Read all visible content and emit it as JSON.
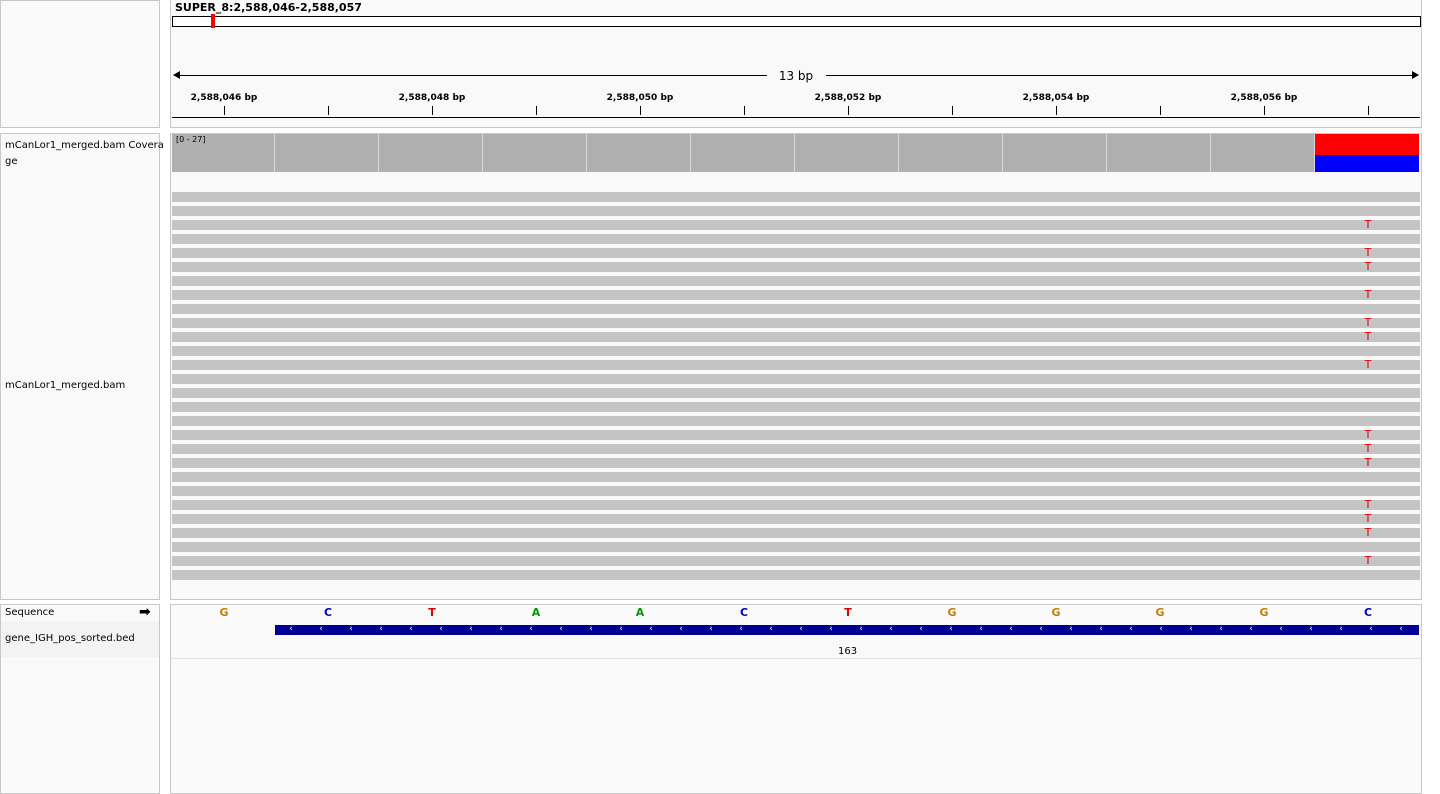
{
  "locus": "SUPER_8:2,588,046-2,588,057",
  "ruler": {
    "span_label": "13 bp",
    "ticks": [
      "2,588,046 bp",
      "2,588,048 bp",
      "2,588,050 bp",
      "2,588,052 bp",
      "2,588,054 bp",
      "2,588,056 bp"
    ]
  },
  "tracks": {
    "coverage_name_line1": "mCanLor1_merged.bam Covera",
    "coverage_name_line2": "ge",
    "coverage_range": "[0 - 27]",
    "alignment_name": "mCanLor1_merged.bam",
    "sequence_name": "Sequence",
    "bed_name": "gene_IGH_pos_sorted.bed",
    "bed_feature_label": "163"
  },
  "sequence": [
    "G",
    "C",
    "T",
    "A",
    "A",
    "C",
    "T",
    "G",
    "G",
    "G",
    "G",
    "C"
  ],
  "colors": {
    "A": "#009600",
    "C": "#0000c8",
    "G": "#c08000",
    "T": "#e00000",
    "coverage": "#b0b0b0",
    "read": "#c4c4c4",
    "ref_red": "#ff0000",
    "alt_blue": "#0000ff",
    "feature": "#000096"
  },
  "mismatch_base": "T",
  "reads": [
    {
      "mismatch": false
    },
    {
      "mismatch": false
    },
    {
      "mismatch": true
    },
    {
      "mismatch": false
    },
    {
      "mismatch": true
    },
    {
      "mismatch": true
    },
    {
      "mismatch": false
    },
    {
      "mismatch": true
    },
    {
      "mismatch": false
    },
    {
      "mismatch": true
    },
    {
      "mismatch": true
    },
    {
      "mismatch": false
    },
    {
      "mismatch": true
    },
    {
      "mismatch": false
    },
    {
      "mismatch": false
    },
    {
      "mismatch": false
    },
    {
      "mismatch": false
    },
    {
      "mismatch": true
    },
    {
      "mismatch": true
    },
    {
      "mismatch": true
    },
    {
      "mismatch": false
    },
    {
      "mismatch": false
    },
    {
      "mismatch": true
    },
    {
      "mismatch": true
    },
    {
      "mismatch": true
    },
    {
      "mismatch": false
    },
    {
      "mismatch": true
    },
    {
      "mismatch": false
    }
  ]
}
